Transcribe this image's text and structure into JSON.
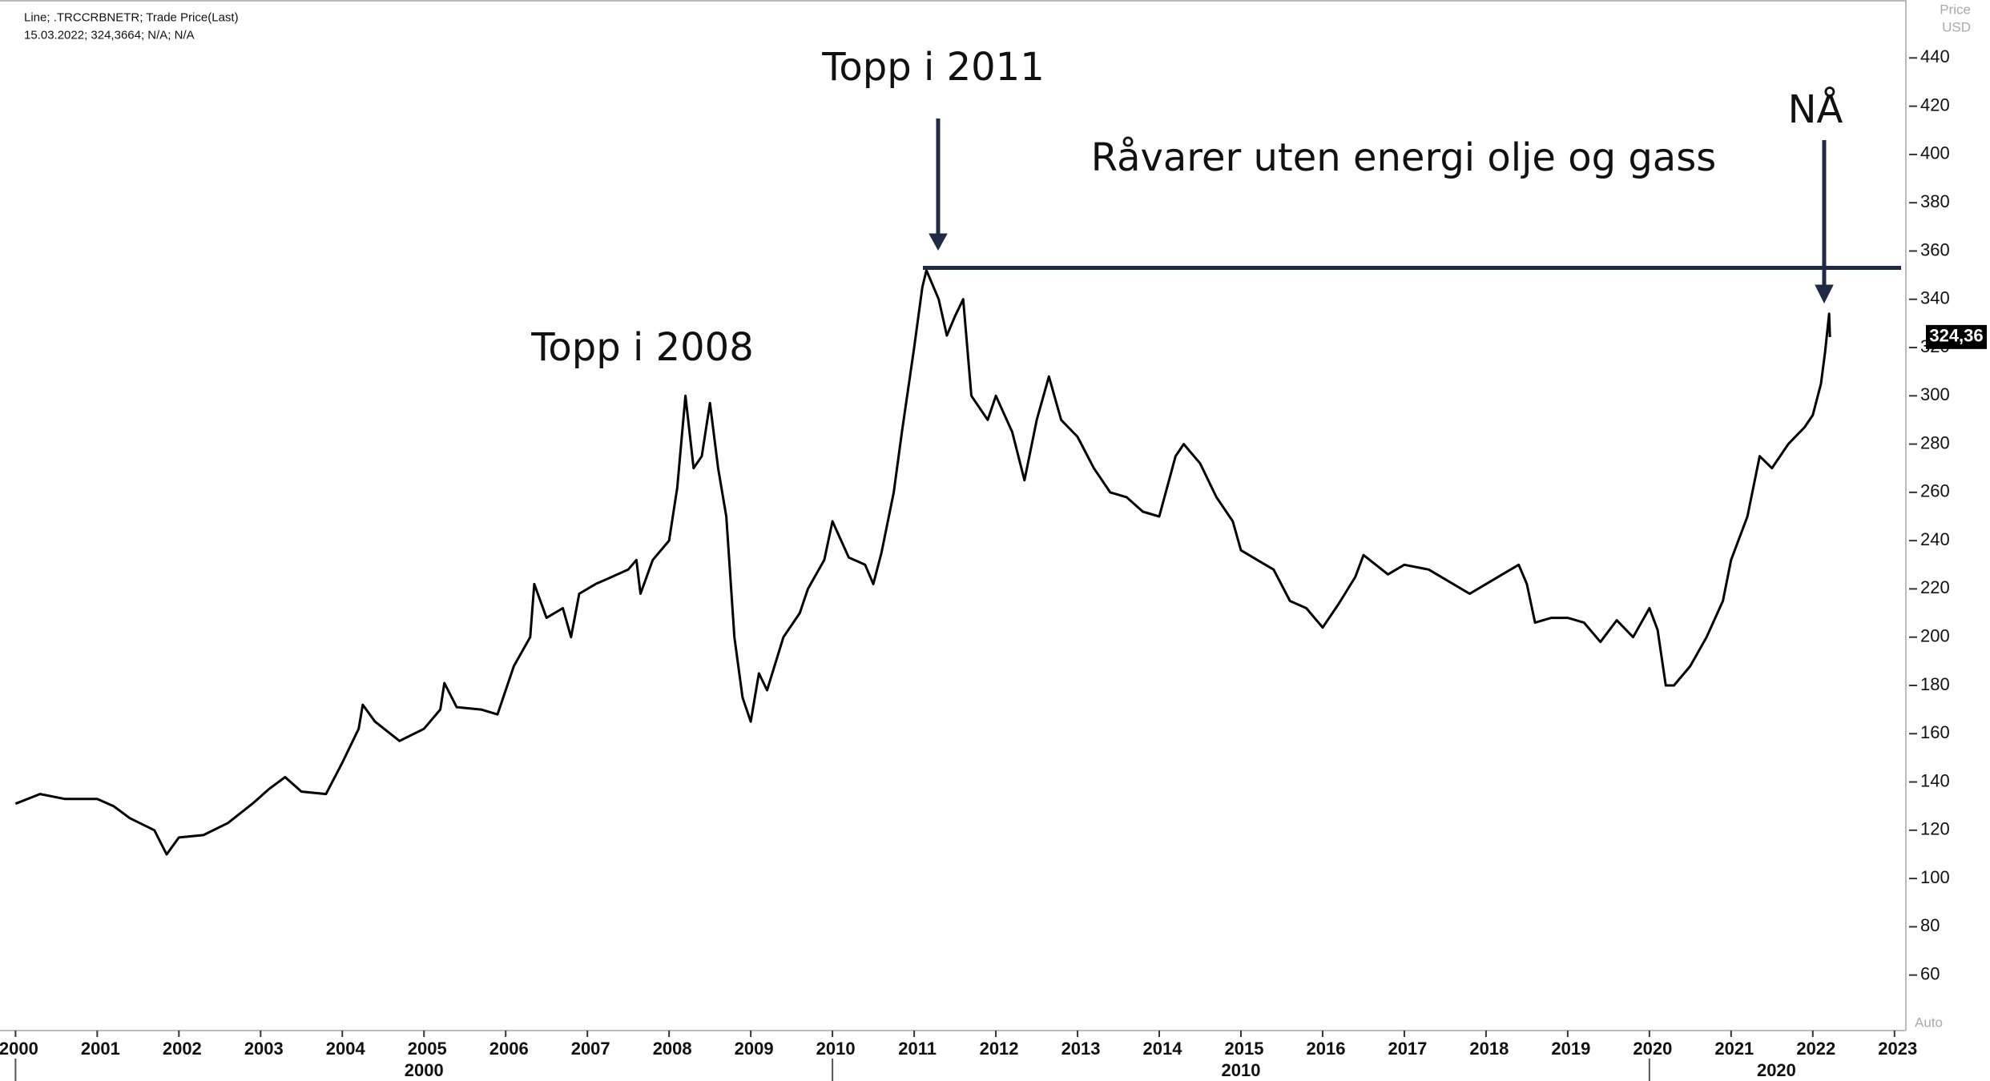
{
  "chart_data": {
    "type": "line",
    "header": [
      "Line; .TRCCRBNETR; Trade Price(Last)",
      "15.03.2022; 324,3664; N/A; N/A"
    ],
    "y_axis_label": [
      "Price",
      "USD"
    ],
    "auto_label": "Auto",
    "annotations": [
      "Topp i 2011",
      "Topp i 2008",
      "Råvarer uten energi olje og gass",
      "NÅ"
    ],
    "last_value_label": "324,36",
    "resistance": 353,
    "color": "#000000",
    "x": [
      2000.0,
      2000.3,
      2000.6,
      2001.0,
      2001.2,
      2001.4,
      2001.7,
      2001.85,
      2002.0,
      2002.3,
      2002.6,
      2002.9,
      2003.1,
      2003.3,
      2003.5,
      2003.8,
      2004.0,
      2004.2,
      2004.25,
      2004.4,
      2004.7,
      2005.0,
      2005.2,
      2005.25,
      2005.4,
      2005.7,
      2005.9,
      2006.0,
      2006.1,
      2006.3,
      2006.35,
      2006.5,
      2006.7,
      2006.8,
      2006.9,
      2007.1,
      2007.3,
      2007.5,
      2007.6,
      2007.65,
      2007.8,
      2008.0,
      2008.1,
      2008.2,
      2008.3,
      2008.4,
      2008.5,
      2008.6,
      2008.7,
      2008.8,
      2008.9,
      2009.0,
      2009.1,
      2009.2,
      2009.4,
      2009.6,
      2009.7,
      2009.9,
      2010.0,
      2010.2,
      2010.4,
      2010.5,
      2010.6,
      2010.75,
      2010.85,
      2011.0,
      2011.1,
      2011.15,
      2011.3,
      2011.4,
      2011.5,
      2011.6,
      2011.7,
      2011.9,
      2012.0,
      2012.2,
      2012.35,
      2012.5,
      2012.65,
      2012.8,
      2013.0,
      2013.2,
      2013.4,
      2013.6,
      2013.8,
      2014.0,
      2014.2,
      2014.3,
      2014.5,
      2014.7,
      2014.9,
      2015.0,
      2015.2,
      2015.4,
      2015.6,
      2015.8,
      2016.0,
      2016.2,
      2016.4,
      2016.5,
      2016.8,
      2017.0,
      2017.3,
      2017.5,
      2017.8,
      2018.0,
      2018.2,
      2018.4,
      2018.5,
      2018.6,
      2018.8,
      2019.0,
      2019.2,
      2019.4,
      2019.6,
      2019.8,
      2020.0,
      2020.1,
      2020.2,
      2020.3,
      2020.5,
      2020.7,
      2020.9,
      2021.0,
      2021.2,
      2021.35,
      2021.5,
      2021.7,
      2021.9,
      2022.0,
      2022.1,
      2022.15,
      2022.2,
      2022.21
    ],
    "values": [
      131,
      135,
      133,
      133,
      130,
      125,
      120,
      110,
      117,
      118,
      123,
      131,
      137,
      142,
      136,
      135,
      148,
      162,
      172,
      165,
      157,
      162,
      170,
      181,
      171,
      170,
      168,
      178,
      188,
      200,
      222,
      208,
      212,
      200,
      218,
      222,
      225,
      228,
      232,
      218,
      232,
      240,
      262,
      300,
      270,
      275,
      297,
      270,
      250,
      200,
      175,
      165,
      185,
      178,
      200,
      210,
      220,
      232,
      248,
      233,
      230,
      222,
      235,
      260,
      285,
      320,
      345,
      352,
      340,
      325,
      333,
      340,
      300,
      290,
      300,
      285,
      265,
      290,
      308,
      290,
      283,
      270,
      260,
      258,
      252,
      250,
      275,
      280,
      272,
      258,
      248,
      236,
      232,
      228,
      215,
      212,
      204,
      214,
      225,
      234,
      226,
      230,
      228,
      224,
      218,
      222,
      226,
      230,
      222,
      206,
      208,
      208,
      206,
      198,
      207,
      200,
      212,
      203,
      180,
      180,
      188,
      200,
      215,
      232,
      250,
      275,
      270,
      280,
      287,
      292,
      305,
      318,
      334,
      324.3664
    ],
    "xlim": [
      1999.81,
      2023.11
    ],
    "xticks": [
      2000,
      2001,
      2002,
      2003,
      2004,
      2005,
      2006,
      2007,
      2008,
      2009,
      2010,
      2011,
      2012,
      2013,
      2014,
      2015,
      2016,
      2017,
      2018,
      2019,
      2020,
      2021,
      2022,
      2023
    ],
    "decades": [
      2000,
      2010,
      2020
    ],
    "ylim": [
      37,
      464
    ],
    "yticks": [
      60,
      80,
      100,
      120,
      140,
      160,
      180,
      200,
      220,
      240,
      260,
      280,
      300,
      320,
      340,
      360,
      380,
      400,
      420,
      440
    ]
  }
}
